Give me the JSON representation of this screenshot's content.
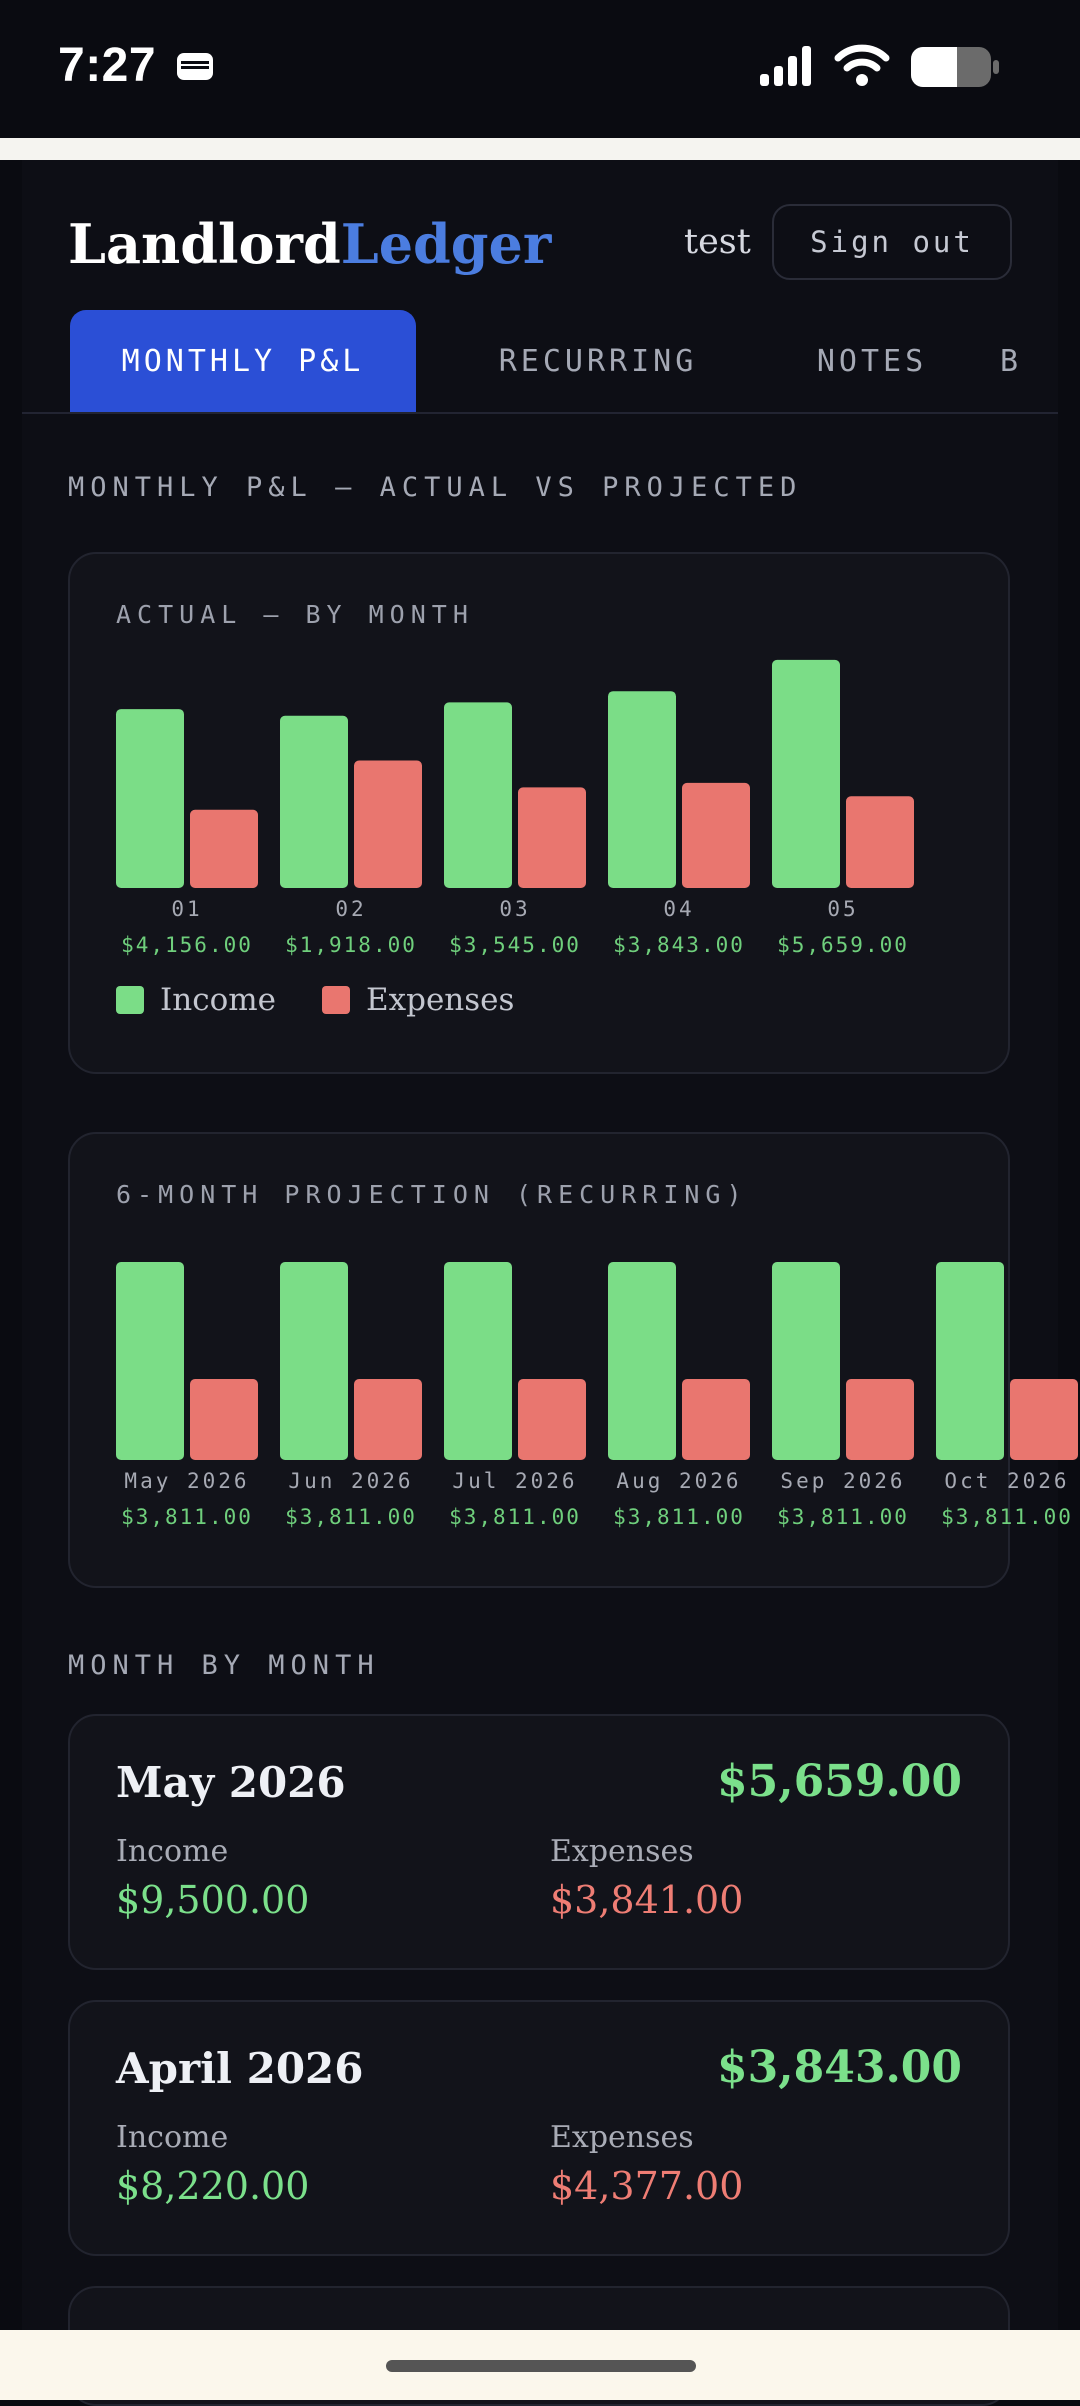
{
  "status_bar": {
    "time": "7:27",
    "icons": [
      "wallet-icon",
      "cellular-signal-icon",
      "wifi-icon",
      "battery-icon"
    ]
  },
  "header": {
    "brand_primary": "Landlord",
    "brand_accent": "Ledger",
    "user": "test",
    "signout_label": "Sign out"
  },
  "tabs": [
    {
      "label": "MONTHLY P&L",
      "active": true
    },
    {
      "label": "RECURRING",
      "active": false
    },
    {
      "label": "NOTES",
      "active": false
    },
    {
      "label": "B",
      "active": false
    }
  ],
  "page_title": "MONTHLY P&L — ACTUAL VS PROJECTED",
  "colors": {
    "income": "#7bdd87",
    "expenses": "#e9766f",
    "accent": "#2b4fd6",
    "brand_accent": "#4b7de0"
  },
  "chart_data": [
    {
      "type": "bar",
      "title": "ACTUAL — BY MONTH",
      "categories": [
        "01",
        "02",
        "03",
        "04",
        "05"
      ],
      "value_labels": [
        "$4,156.00",
        "$1,918.00",
        "$3,545.00",
        "$3,843.00",
        "$5,659.00"
      ],
      "series": [
        {
          "name": "Income",
          "values": [
            8000,
            7700,
            8300,
            8800,
            10200
          ]
        },
        {
          "name": "Expenses",
          "values": [
            3500,
            5700,
            4500,
            4700,
            4100
          ]
        }
      ],
      "ylim": [
        0,
        11000
      ],
      "legend": "bottom-left"
    },
    {
      "type": "bar",
      "title": "6-MONTH PROJECTION (RECURRING)",
      "categories": [
        "May 2026",
        "Jun 2026",
        "Jul 2026",
        "Aug 2026",
        "Sep 2026",
        "Oct 2026"
      ],
      "value_labels": [
        "$3,811.00",
        "$3,811.00",
        "$3,811.00",
        "$3,811.00",
        "$3,811.00",
        "$3,811.00"
      ],
      "series": [
        {
          "name": "Income",
          "values": [
            7700,
            7700,
            7700,
            7700,
            7700,
            7700
          ]
        },
        {
          "name": "Expenses",
          "values": [
            3150,
            3150,
            3150,
            3150,
            3150,
            3150
          ]
        }
      ],
      "ylim": [
        0,
        7700
      ]
    }
  ],
  "legend": {
    "income": "Income",
    "expenses": "Expenses"
  },
  "month_section_title": "MONTH BY MONTH",
  "months": [
    {
      "name": "May 2026",
      "net": "$5,659.00",
      "income_label": "Income",
      "income": "$9,500.00",
      "expenses_label": "Expenses",
      "expenses": "$3,841.00"
    },
    {
      "name": "April 2026",
      "net": "$3,843.00",
      "income_label": "Income",
      "income": "$8,220.00",
      "expenses_label": "Expenses",
      "expenses": "$4,377.00"
    }
  ]
}
